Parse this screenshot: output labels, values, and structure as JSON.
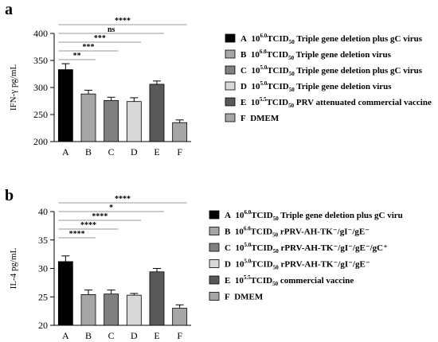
{
  "panels": [
    {
      "panel_label": "a",
      "legend": [
        {
          "letter": "A",
          "color": "#000000",
          "text": "Triple gene deletion plus gC virus",
          "dose": {
            "base": "10",
            "exp": "6.0",
            "unit": "TCID",
            "sub": "50"
          }
        },
        {
          "letter": "B",
          "color": "#a6a6a6",
          "text": "Triple gene deletion virus",
          "dose": {
            "base": "10",
            "exp": "6.0",
            "unit": "TCID",
            "sub": "50"
          }
        },
        {
          "letter": "C",
          "color": "#808080",
          "text": "Triple gene deletion plus gC virus",
          "dose": {
            "base": "10",
            "exp": "5.0",
            "unit": "TCID",
            "sub": "50"
          }
        },
        {
          "letter": "D",
          "color": "#d9d9d9",
          "text": "Triple gene deletion virus",
          "dose": {
            "base": "10",
            "exp": "5.0",
            "unit": "TCID",
            "sub": "50"
          }
        },
        {
          "letter": "E",
          "color": "#595959",
          "text": "PRV attenuated commercial vaccine",
          "dose": {
            "base": "10",
            "exp": "5.5",
            "unit": "TCID",
            "sub": "50"
          }
        },
        {
          "letter": "F",
          "color": "#a6a6a6",
          "text": "DMEM",
          "dose": null
        }
      ],
      "significance": [
        {
          "label": "****",
          "to": "F"
        },
        {
          "label": "ns",
          "to": "E"
        },
        {
          "label": "***",
          "to": "D"
        },
        {
          "label": "***",
          "to": "C"
        },
        {
          "label": "**",
          "to": "B"
        }
      ]
    },
    {
      "panel_label": "b",
      "legend": [
        {
          "letter": "A",
          "color": "#000000",
          "text": "Triple gene deletion plus gC viru",
          "dose": {
            "base": "10",
            "exp": "6.0",
            "unit": "TCID",
            "sub": "50"
          }
        },
        {
          "letter": "B",
          "color": "#a6a6a6",
          "text": "rPRV-AH-TK⁻/gI⁻/gE⁻",
          "dose": {
            "base": "10",
            "exp": "6.0",
            "unit": "TCID",
            "sub": "50"
          }
        },
        {
          "letter": "C",
          "color": "#808080",
          "text": "rPRV-AH-TK⁻/gI⁻/gE⁻/gC⁺",
          "dose": {
            "base": "10",
            "exp": "5.0",
            "unit": "TCID",
            "sub": "50"
          }
        },
        {
          "letter": "D",
          "color": "#d9d9d9",
          "text": "rPRV-AH-TK⁻/gI⁻/gE⁻",
          "dose": {
            "base": "10",
            "exp": "5.0",
            "unit": "TCID",
            "sub": "50"
          }
        },
        {
          "letter": "E",
          "color": "#595959",
          "text": "commercial vaccine",
          "dose": {
            "base": "10",
            "exp": "5.5",
            "unit": "TCID",
            "sub": "50"
          }
        },
        {
          "letter": "F",
          "color": "#a6a6a6",
          "text": "DMEM",
          "dose": null
        }
      ],
      "significance": [
        {
          "label": "****",
          "to": "F"
        },
        {
          "label": "*",
          "to": "E"
        },
        {
          "label": "****",
          "to": "D"
        },
        {
          "label": "****",
          "to": "C"
        },
        {
          "label": "****",
          "to": "B"
        }
      ]
    }
  ],
  "chart_data": [
    {
      "type": "bar",
      "ylabel": "IFN-γ pg/mL",
      "categories": [
        "A",
        "B",
        "C",
        "D",
        "E",
        "F"
      ],
      "values": [
        333,
        288,
        276,
        274,
        306,
        235
      ],
      "errors": [
        11,
        7,
        6,
        7,
        6,
        5
      ],
      "ylim": [
        200,
        400
      ],
      "yticks": [
        200,
        250,
        300,
        350,
        400
      ],
      "colors": [
        "#000000",
        "#a6a6a6",
        "#808080",
        "#d9d9d9",
        "#595959",
        "#a6a6a6"
      ]
    },
    {
      "type": "bar",
      "ylabel": "IL-4 pg/mL",
      "categories": [
        "A",
        "B",
        "C",
        "D",
        "E",
        "F"
      ],
      "values": [
        31.2,
        25.4,
        25.5,
        25.3,
        29.4,
        23.0
      ],
      "errors": [
        1.0,
        0.8,
        0.7,
        0.3,
        0.6,
        0.6
      ],
      "ylim": [
        20,
        40
      ],
      "yticks": [
        20,
        25,
        30,
        35,
        40
      ],
      "colors": [
        "#000000",
        "#a6a6a6",
        "#808080",
        "#d9d9d9",
        "#595959",
        "#a6a6a6"
      ]
    }
  ]
}
